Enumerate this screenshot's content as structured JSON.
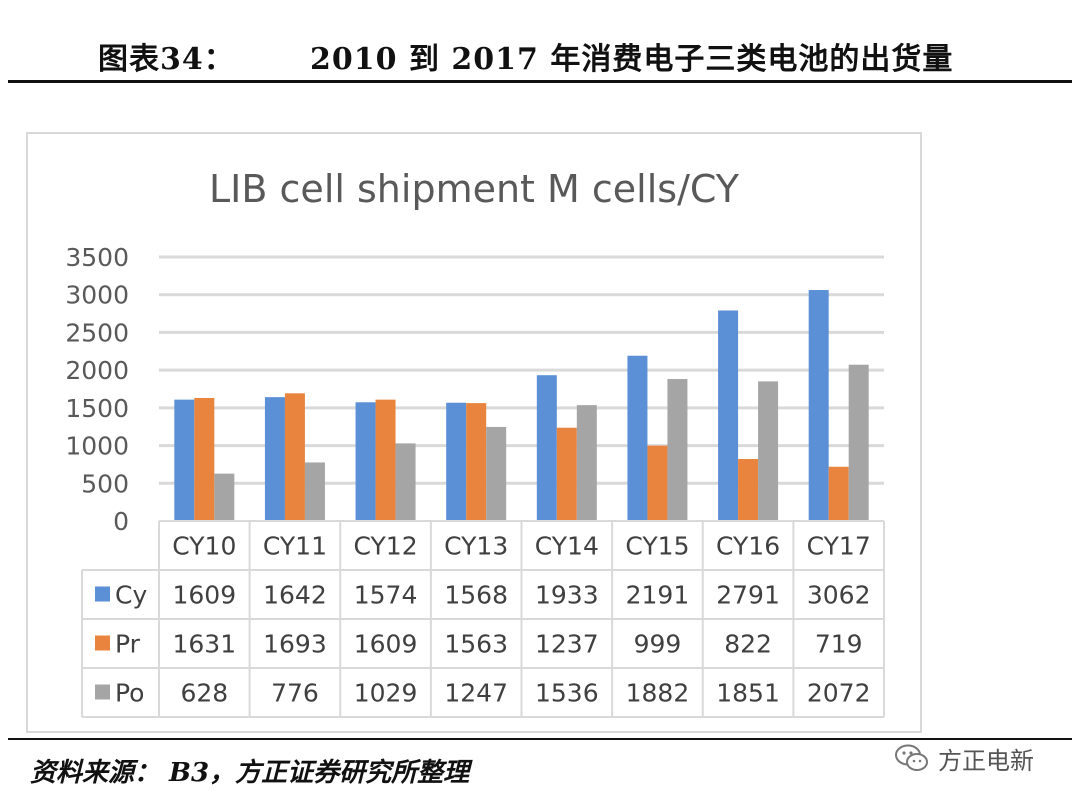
{
  "figure": {
    "label": "图表34：",
    "title": "2010 到 2017 年消费电子三类电池的出货量"
  },
  "source_text": "资料来源： B3，方正证券研究所整理",
  "watermark": {
    "text": "方正电新",
    "icon": "wechat-icon"
  },
  "chart_data": {
    "type": "bar",
    "title": "LIB cell shipment M cells/CY",
    "categories": [
      "CY10",
      "CY11",
      "CY12",
      "CY13",
      "CY14",
      "CY15",
      "CY16",
      "CY17"
    ],
    "series": [
      {
        "name": "Cy",
        "color": "#5b8fd6",
        "values": [
          1609,
          1642,
          1574,
          1568,
          1933,
          2191,
          2791,
          3062
        ]
      },
      {
        "name": "Pr",
        "color": "#e9843f",
        "values": [
          1631,
          1693,
          1609,
          1563,
          1237,
          999,
          822,
          719
        ]
      },
      {
        "name": "Po",
        "color": "#a5a5a5",
        "values": [
          628,
          776,
          1029,
          1247,
          1536,
          1882,
          1851,
          2072
        ]
      }
    ],
    "yticks": [
      "0",
      "500",
      "1000",
      "1500",
      "2000",
      "2500",
      "3000",
      "3500"
    ],
    "ylim": [
      0,
      3500
    ],
    "grid": true,
    "legend": "data-table"
  }
}
